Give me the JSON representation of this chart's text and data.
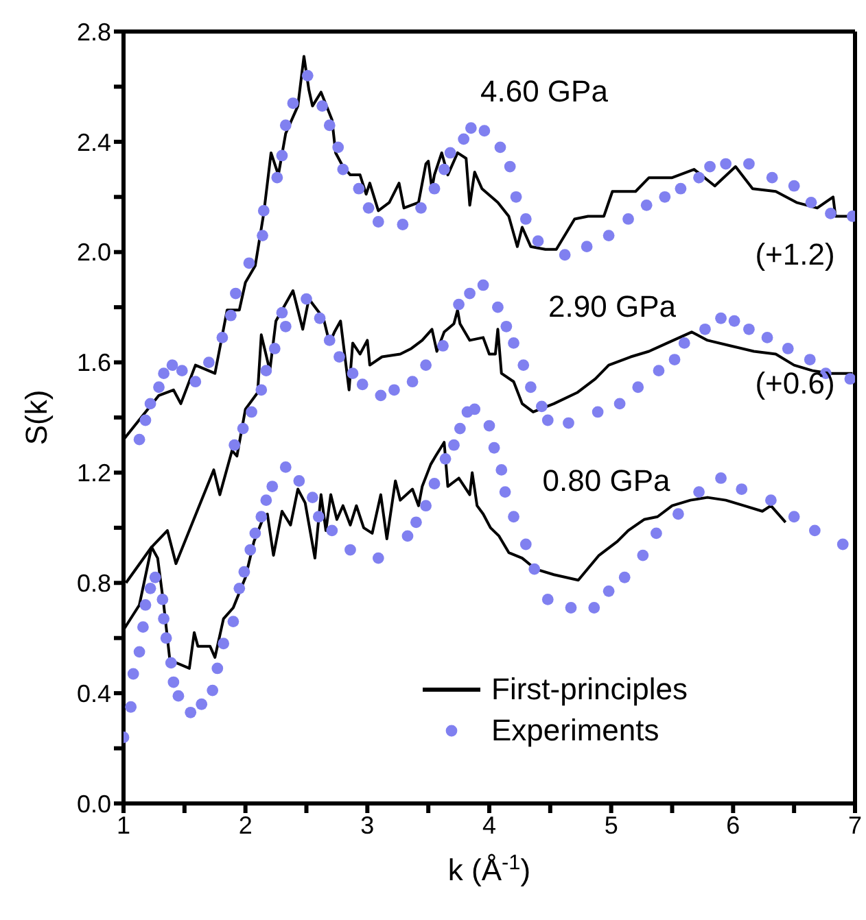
{
  "chart_data": {
    "type": "line",
    "xlabel": "k (Å$^{-1}$)",
    "ylabel": "S(k)",
    "xlim": [
      1,
      7
    ],
    "ylim": [
      0,
      2.8
    ],
    "xticks": [
      1,
      {
        "value": 1.5,
        "label": null
      },
      2,
      {
        "value": 2.5,
        "label": null
      },
      3,
      {
        "value": 3.5,
        "label": null
      },
      4,
      {
        "value": 4.5,
        "label": null
      },
      5,
      {
        "value": 5.5,
        "label": null
      },
      6,
      {
        "value": 6.5,
        "label": null
      },
      7
    ],
    "yticks": [
      {
        "value": 0,
        "label": "0.0"
      },
      {
        "value": 0.2,
        "label": null
      },
      {
        "value": 0.4,
        "label": "0.4"
      },
      {
        "value": 0.6,
        "label": null
      },
      {
        "value": 0.8,
        "label": "0.8"
      },
      {
        "value": 1.0,
        "label": null
      },
      {
        "value": 1.2,
        "label": "1.2"
      },
      {
        "value": 1.4,
        "label": null
      },
      {
        "value": 1.6,
        "label": "1.6"
      },
      {
        "value": 1.8,
        "label": null
      },
      {
        "value": 2.0,
        "label": "2.0"
      },
      {
        "value": 2.2,
        "label": null
      },
      {
        "value": 2.4,
        "label": "2.4"
      },
      {
        "value": 2.6,
        "label": null
      },
      {
        "value": 2.8,
        "label": "2.8"
      }
    ],
    "legend": "bottom right",
    "annotations": [
      "4.60 GPa",
      "(+1.2)",
      "2.90 GPa",
      "(+0.6)",
      "0.80 GPa"
    ],
    "series": [
      {
        "name": "First-principles",
        "color": "#000000",
        "x": [
          1.0,
          1.29,
          1.41,
          1.47,
          1.59,
          1.75,
          1.85,
          1.95,
          2.0,
          2.08,
          2.15,
          2.21,
          2.27,
          2.33,
          2.43,
          2.48,
          2.52,
          2.55,
          2.62,
          2.71,
          2.74,
          2.8,
          2.86,
          2.94,
          2.99,
          3.02,
          3.09,
          3.18,
          3.26,
          3.3,
          3.42,
          3.48,
          3.5,
          3.53,
          3.55,
          3.61,
          3.66,
          3.74,
          3.81,
          3.84,
          3.88,
          3.94,
          4.07,
          4.16,
          4.23,
          4.27,
          4.34,
          4.46,
          4.55,
          4.7,
          4.81,
          4.94,
          5.01,
          5.2,
          5.31,
          5.5,
          5.68,
          5.85,
          6.02,
          6.16,
          6.35,
          6.52,
          6.69,
          6.82,
          6.84,
          6.98
        ],
        "values": [
          1.32,
          1.48,
          1.5,
          1.45,
          1.59,
          1.56,
          1.79,
          1.79,
          1.89,
          1.95,
          2.14,
          2.36,
          2.28,
          2.43,
          2.53,
          2.71,
          2.59,
          2.53,
          2.58,
          2.48,
          2.36,
          2.31,
          2.28,
          2.28,
          2.21,
          2.25,
          2.15,
          2.18,
          2.25,
          2.16,
          2.18,
          2.32,
          2.33,
          2.23,
          2.28,
          2.36,
          2.28,
          2.36,
          2.34,
          2.17,
          2.29,
          2.23,
          2.18,
          2.13,
          2.02,
          2.09,
          2.02,
          2.01,
          2.01,
          2.12,
          2.13,
          2.13,
          2.22,
          2.22,
          2.27,
          2.27,
          2.3,
          2.24,
          2.31,
          2.23,
          2.22,
          2.18,
          2.16,
          2.2,
          2.13,
          2.13
        ]
      },
      {
        "name": "Experiments",
        "type": "scatter",
        "color": "#8080f0",
        "x": [
          1.13,
          1.18,
          1.22,
          1.29,
          1.33,
          1.4,
          1.48,
          1.59,
          1.7,
          1.81,
          1.88,
          1.92,
          2.03,
          2.14,
          2.15,
          2.26,
          2.3,
          2.33,
          2.39,
          2.51,
          2.63,
          2.69,
          2.76,
          2.8,
          2.93,
          3.01,
          3.09,
          3.29,
          3.44,
          3.55,
          3.63,
          3.68,
          3.79,
          3.85,
          3.96,
          4.09,
          4.17,
          4.22,
          4.3,
          4.4,
          4.62,
          4.8,
          4.98,
          5.14,
          5.29,
          5.44,
          5.57,
          5.72,
          5.81,
          5.94,
          6.13,
          6.32,
          6.5,
          6.64,
          6.8,
          6.98
        ],
        "values": [
          1.32,
          1.39,
          1.45,
          1.51,
          1.56,
          1.59,
          1.57,
          1.53,
          1.6,
          1.69,
          1.77,
          1.85,
          1.96,
          2.06,
          2.15,
          2.27,
          2.35,
          2.46,
          2.54,
          2.64,
          2.53,
          2.46,
          2.38,
          2.3,
          2.23,
          2.16,
          2.11,
          2.1,
          2.16,
          2.23,
          2.3,
          2.36,
          2.41,
          2.45,
          2.44,
          2.38,
          2.31,
          2.2,
          2.12,
          2.04,
          1.99,
          2.02,
          2.06,
          2.12,
          2.17,
          2.2,
          2.23,
          2.27,
          2.31,
          2.32,
          2.32,
          2.27,
          2.24,
          2.18,
          2.14,
          2.13
        ]
      },
      {
        "color": "#000000",
        "x": [
          1.02,
          1.23,
          1.36,
          1.43,
          1.74,
          1.79,
          1.89,
          1.93,
          2.0,
          2.1,
          2.13,
          2.2,
          2.25,
          2.39,
          2.47,
          2.52,
          2.64,
          2.69,
          2.73,
          2.78,
          2.85,
          2.88,
          2.94,
          3.0,
          3.02,
          3.12,
          3.27,
          3.36,
          3.45,
          3.53,
          3.57,
          3.63,
          3.71,
          3.74,
          3.76,
          3.84,
          3.95,
          4.0,
          4.05,
          4.07,
          4.1,
          4.2,
          4.27,
          4.36,
          4.53,
          4.72,
          4.87,
          4.98,
          5.16,
          5.31,
          5.46,
          5.66,
          5.79,
          5.98,
          6.17,
          6.35,
          6.5,
          6.65,
          6.8,
          6.98
        ],
        "values": [
          0.8,
          0.93,
          0.99,
          0.87,
          1.21,
          1.12,
          1.28,
          1.26,
          1.43,
          1.49,
          1.7,
          1.57,
          1.75,
          1.86,
          1.72,
          1.83,
          1.76,
          1.67,
          1.71,
          1.75,
          1.5,
          1.67,
          1.63,
          1.68,
          1.59,
          1.62,
          1.63,
          1.65,
          1.68,
          1.72,
          1.64,
          1.71,
          1.74,
          1.79,
          1.74,
          1.68,
          1.69,
          1.63,
          1.63,
          1.72,
          1.56,
          1.53,
          1.45,
          1.42,
          1.45,
          1.49,
          1.54,
          1.59,
          1.62,
          1.64,
          1.67,
          1.71,
          1.68,
          1.66,
          1.64,
          1.63,
          1.59,
          1.57,
          1.56,
          1.56
        ]
      },
      {
        "type": "scatter",
        "color": "#8080f0",
        "x": [
          1.91,
          1.98,
          2.05,
          2.13,
          2.17,
          2.24,
          2.3,
          2.33,
          2.5,
          2.61,
          2.69,
          2.77,
          2.88,
          2.96,
          3.11,
          3.22,
          3.37,
          3.48,
          3.62,
          3.75,
          3.84,
          3.95,
          4.07,
          4.14,
          4.2,
          4.28,
          4.34,
          4.43,
          4.48,
          4.65,
          4.89,
          5.07,
          5.22,
          5.39,
          5.52,
          5.6,
          5.77,
          5.9,
          6.01,
          6.13,
          6.28,
          6.45,
          6.63,
          6.76,
          6.96
        ],
        "values": [
          1.3,
          1.36,
          1.42,
          1.5,
          1.57,
          1.65,
          1.78,
          1.73,
          1.83,
          1.76,
          1.68,
          1.62,
          1.56,
          1.52,
          1.48,
          1.5,
          1.53,
          1.59,
          1.66,
          1.81,
          1.85,
          1.88,
          1.8,
          1.73,
          1.67,
          1.59,
          1.51,
          1.44,
          1.39,
          1.38,
          1.42,
          1.45,
          1.51,
          1.57,
          1.61,
          1.67,
          1.72,
          1.76,
          1.75,
          1.72,
          1.69,
          1.65,
          1.61,
          1.56,
          1.54
        ]
      },
      {
        "color": "#000000",
        "x": [
          1.0,
          1.13,
          1.23,
          1.28,
          1.33,
          1.38,
          1.54,
          1.58,
          1.61,
          1.71,
          1.75,
          1.82,
          1.9,
          2.0,
          2.07,
          2.15,
          2.18,
          2.23,
          2.3,
          2.37,
          2.43,
          2.49,
          2.57,
          2.62,
          2.66,
          2.7,
          2.75,
          2.8,
          2.86,
          2.91,
          2.97,
          3.04,
          3.11,
          3.16,
          3.23,
          3.27,
          3.37,
          3.42,
          3.45,
          3.52,
          3.56,
          3.63,
          3.66,
          3.75,
          3.84,
          3.86,
          3.9,
          3.95,
          4.01,
          4.08,
          4.16,
          4.27,
          4.38,
          4.53,
          4.73,
          4.9,
          5.05,
          5.14,
          5.27,
          5.38,
          5.5,
          5.65,
          5.79,
          5.94,
          6.09,
          6.24,
          6.31,
          6.43
        ],
        "values": [
          0.63,
          0.72,
          0.93,
          0.89,
          0.72,
          0.52,
          0.49,
          0.62,
          0.57,
          0.57,
          0.53,
          0.67,
          0.71,
          0.82,
          0.95,
          1.04,
          1.05,
          0.9,
          1.06,
          1.01,
          1.14,
          1.09,
          0.89,
          1.12,
          0.99,
          1.12,
          1.03,
          1.08,
          1.01,
          1.08,
          1.0,
          0.98,
          1.12,
          0.96,
          1.17,
          1.1,
          1.14,
          1.08,
          1.15,
          1.23,
          1.26,
          1.31,
          1.15,
          1.18,
          1.12,
          1.2,
          1.08,
          1.05,
          1.0,
          0.97,
          0.91,
          0.89,
          0.85,
          0.83,
          0.81,
          0.9,
          0.95,
          0.99,
          1.03,
          1.04,
          1.08,
          1.1,
          1.11,
          1.1,
          1.08,
          1.06,
          1.08,
          1.02
        ]
      },
      {
        "type": "scatter",
        "color": "#8080f0",
        "x": [
          1.0,
          1.06,
          1.08,
          1.13,
          1.16,
          1.18,
          1.22,
          1.26,
          1.32,
          1.33,
          1.35,
          1.39,
          1.41,
          1.45,
          1.55,
          1.64,
          1.73,
          1.77,
          1.82,
          1.9,
          1.95,
          1.99,
          2.04,
          2.08,
          2.13,
          2.17,
          2.22,
          2.33,
          2.44,
          2.55,
          2.6,
          2.71,
          2.86,
          3.09,
          3.33,
          3.4,
          3.48,
          3.55,
          3.64,
          3.71,
          3.76,
          3.82,
          3.88,
          4.0,
          4.04,
          4.1,
          4.13,
          4.2,
          4.3,
          4.37,
          4.48,
          4.67,
          4.86,
          4.98,
          5.11,
          5.26,
          5.37,
          5.55,
          5.72,
          5.9,
          6.07,
          6.31,
          6.5,
          6.67,
          6.9
        ],
        "values": [
          0.24,
          0.35,
          0.47,
          0.55,
          0.64,
          0.72,
          0.78,
          0.82,
          0.74,
          0.67,
          0.6,
          0.51,
          0.44,
          0.39,
          0.33,
          0.36,
          0.41,
          0.49,
          0.58,
          0.66,
          0.78,
          0.84,
          0.92,
          0.98,
          1.04,
          1.1,
          1.15,
          1.22,
          1.17,
          1.11,
          1.04,
          0.99,
          0.92,
          0.89,
          0.97,
          1.02,
          1.08,
          1.16,
          1.25,
          1.3,
          1.36,
          1.42,
          1.43,
          1.37,
          1.29,
          1.21,
          1.13,
          1.04,
          0.94,
          0.85,
          0.74,
          0.71,
          0.71,
          0.77,
          0.82,
          0.9,
          0.98,
          1.05,
          1.13,
          1.18,
          1.14,
          1.1,
          1.04,
          0.99,
          0.94
        ]
      }
    ]
  }
}
